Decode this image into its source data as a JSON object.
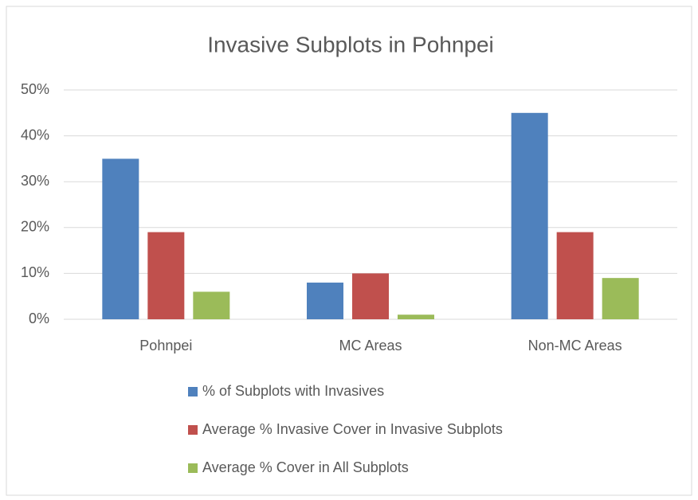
{
  "chart_data": {
    "type": "bar",
    "title": "Invasive Subplots in Pohnpei",
    "categories": [
      "Pohnpei",
      "MC Areas",
      "Non-MC Areas"
    ],
    "series": [
      {
        "name": "% of Subplots with Invasives",
        "color": "#4f81bd",
        "values": [
          35,
          8,
          45
        ]
      },
      {
        "name": "Average % Invasive Cover in Invasive Subplots",
        "color": "#c0504d",
        "values": [
          19,
          10,
          19
        ]
      },
      {
        "name": "Average % Cover in All Subplots",
        "color": "#9bbb59",
        "values": [
          6,
          1,
          9
        ]
      }
    ],
    "ylim": [
      0,
      50
    ],
    "yticks": [
      {
        "value": 0,
        "label": "0%"
      },
      {
        "value": 10,
        "label": "10%"
      },
      {
        "value": 20,
        "label": "20%"
      },
      {
        "value": 30,
        "label": "30%"
      },
      {
        "value": 40,
        "label": "40%"
      },
      {
        "value": 50,
        "label": "50%"
      }
    ],
    "grid": true,
    "legend": "bottom"
  }
}
